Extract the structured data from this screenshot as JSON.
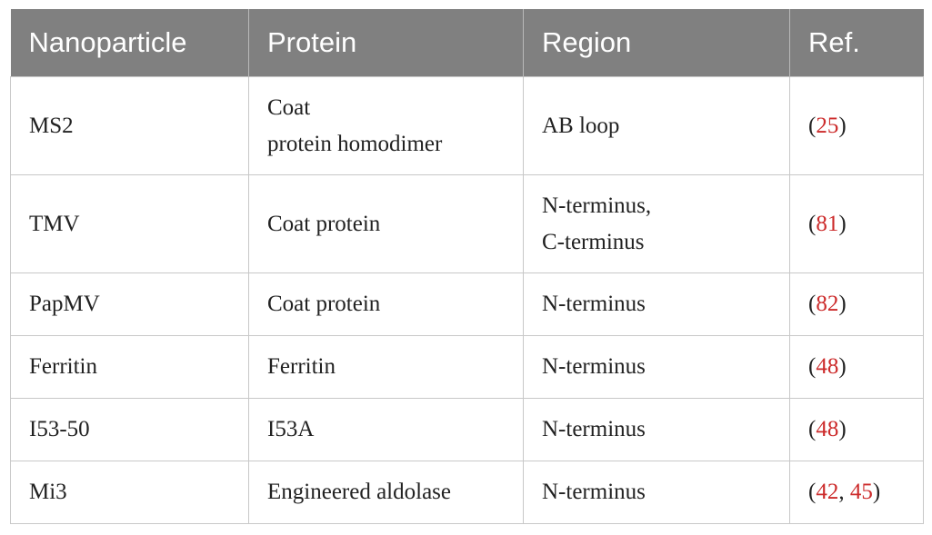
{
  "table": {
    "headers": [
      "Nanoparticle",
      "Protein",
      "Region",
      "Ref."
    ],
    "rows": [
      {
        "nanoparticle": "MS2",
        "protein": [
          "Coat",
          "protein homodimer"
        ],
        "region": [
          "AB loop"
        ],
        "refs": [
          "25"
        ]
      },
      {
        "nanoparticle": "TMV",
        "protein": [
          "Coat protein"
        ],
        "region": [
          "N-terminus,",
          "C-terminus"
        ],
        "refs": [
          "81"
        ]
      },
      {
        "nanoparticle": "PapMV",
        "protein": [
          "Coat protein"
        ],
        "region": [
          "N-terminus"
        ],
        "refs": [
          "82"
        ]
      },
      {
        "nanoparticle": "Ferritin",
        "protein": [
          "Ferritin"
        ],
        "region": [
          "N-terminus"
        ],
        "refs": [
          "48"
        ]
      },
      {
        "nanoparticle": "I53-50",
        "protein": [
          "I53A"
        ],
        "region": [
          "N-terminus"
        ],
        "refs": [
          "48"
        ]
      },
      {
        "nanoparticle": "Mi3",
        "protein": [
          "Engineered aldolase"
        ],
        "region": [
          "N-terminus"
        ],
        "refs": [
          "42",
          "45"
        ]
      }
    ]
  }
}
